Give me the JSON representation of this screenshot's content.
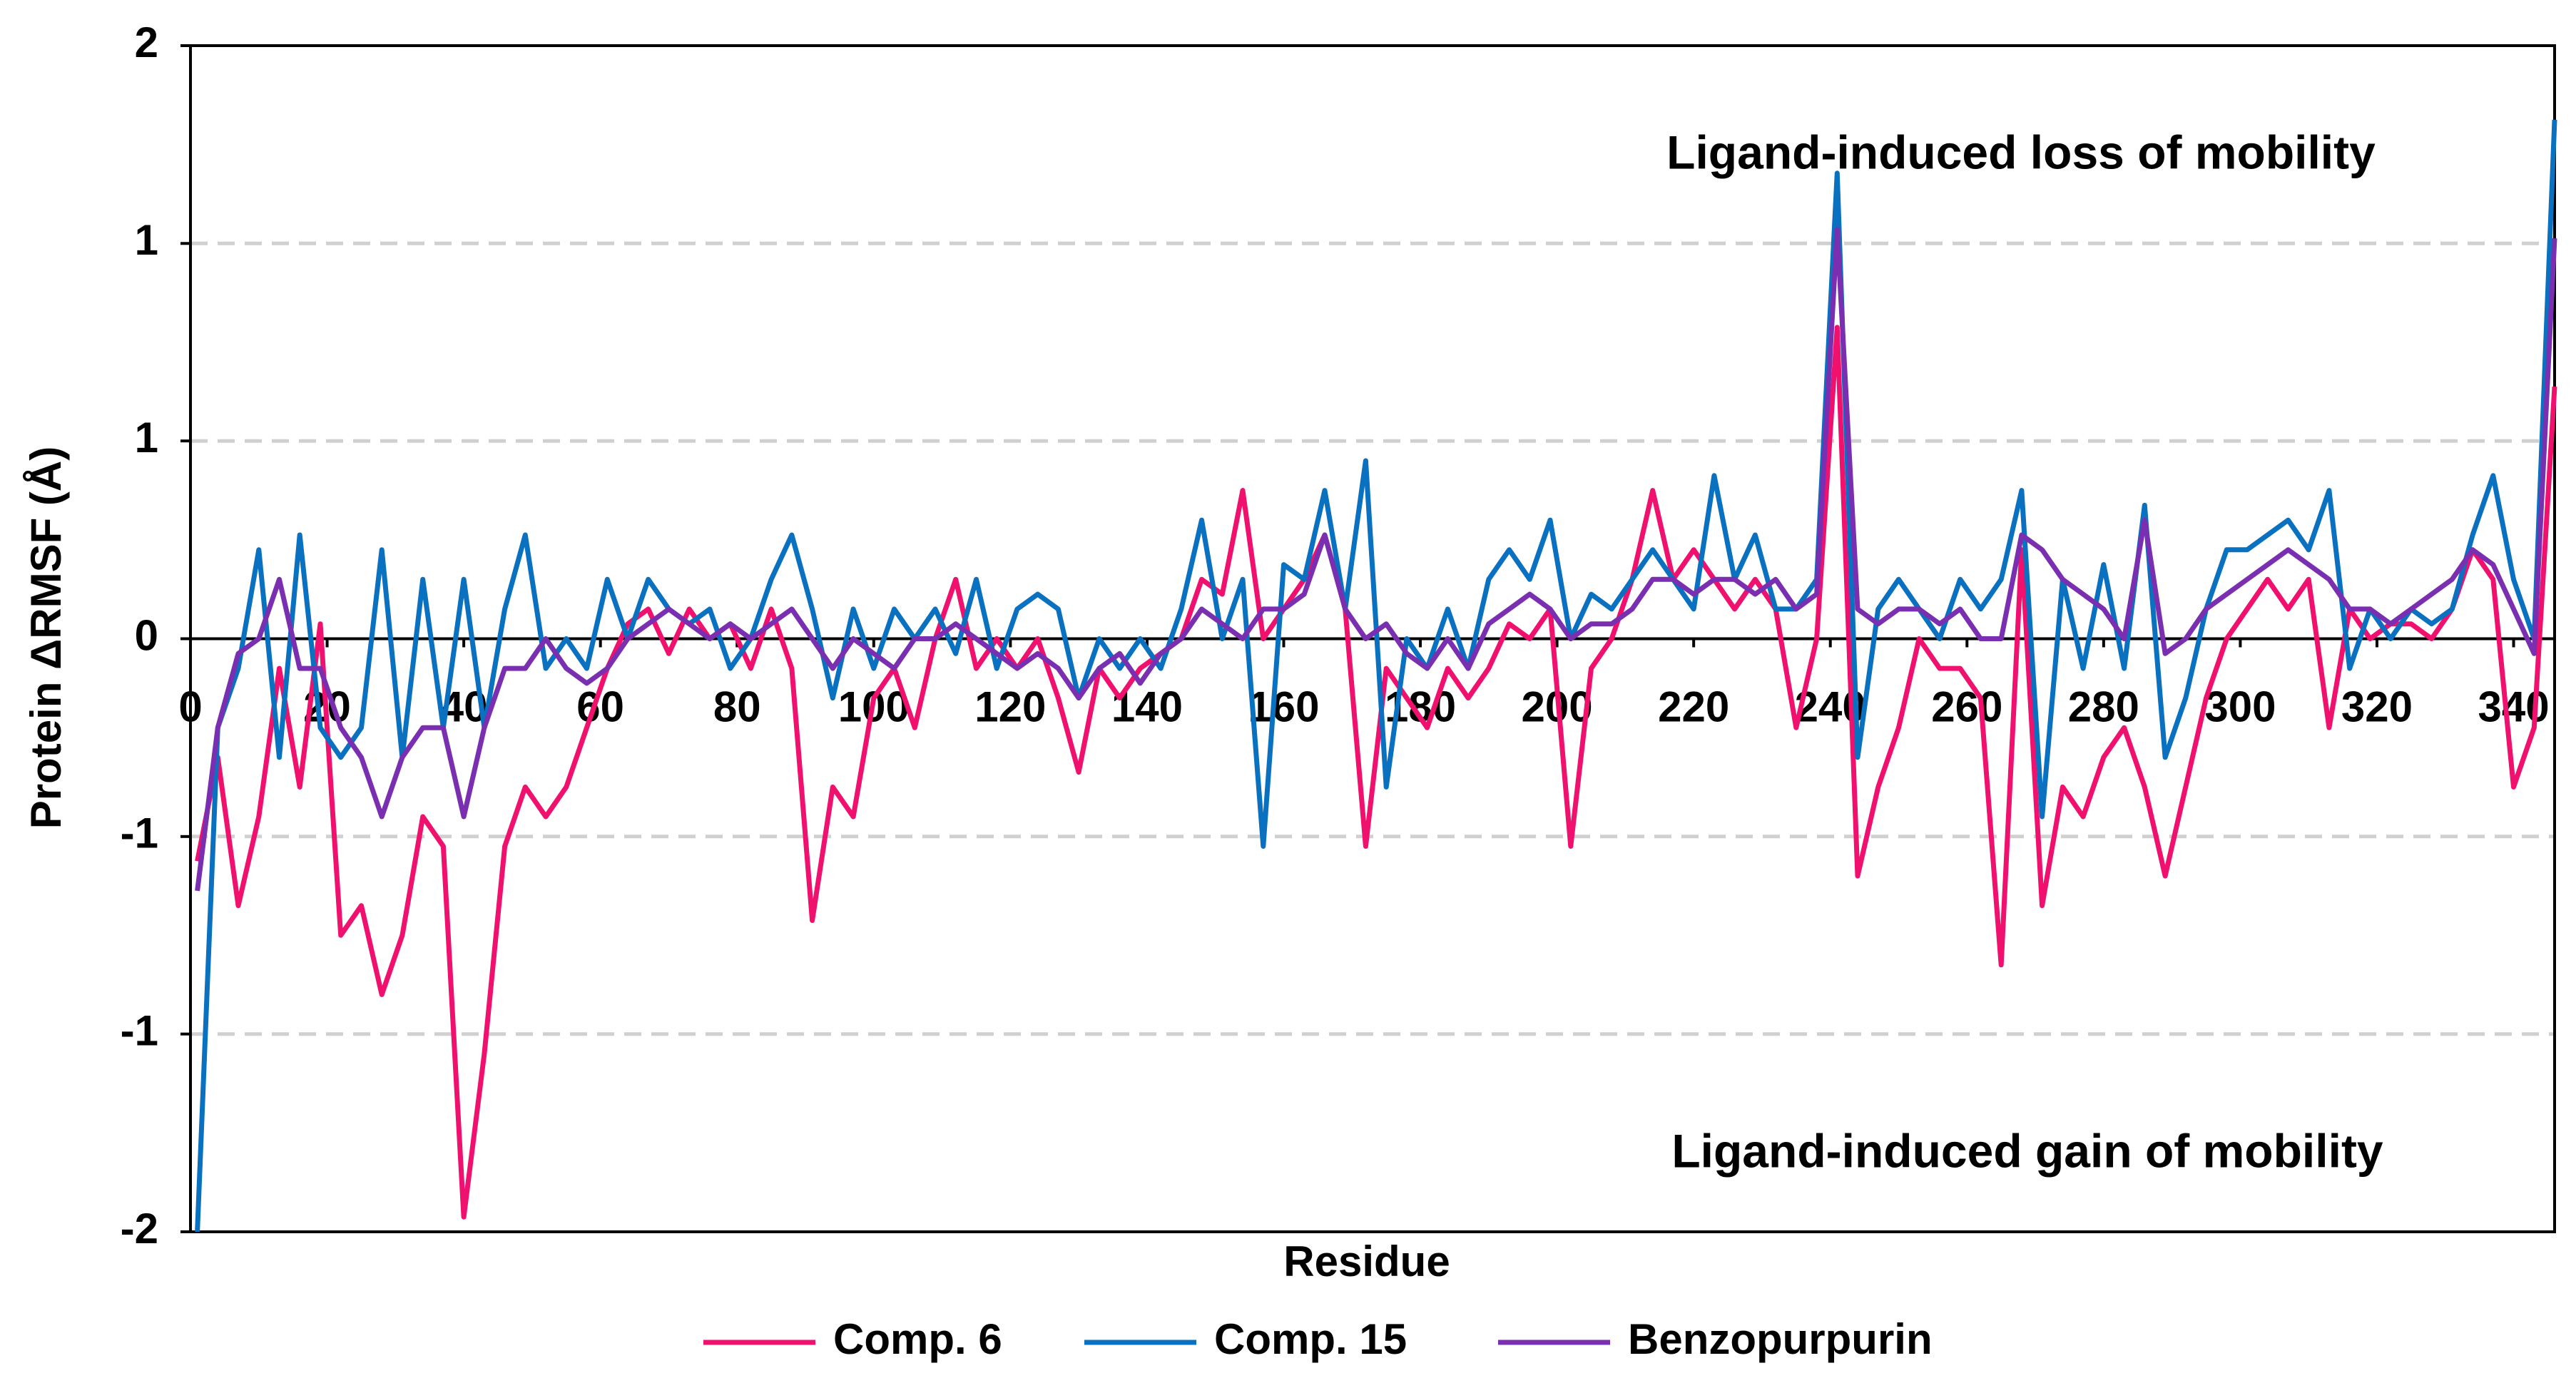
{
  "chart_data": {
    "type": "line",
    "y_label": "Protein ΔRMSF (Å)",
    "x_label": "Residue",
    "annotations": [
      "Ligand-induced loss of mobility",
      "Ligand-induced gain of mobility"
    ],
    "x": [
      1,
      4,
      7,
      10,
      13,
      16,
      19,
      22,
      25,
      28,
      31,
      34,
      37,
      40,
      43,
      46,
      49,
      52,
      55,
      58,
      61,
      64,
      67,
      70,
      73,
      76,
      79,
      82,
      85,
      88,
      91,
      94,
      97,
      100,
      103,
      106,
      109,
      112,
      115,
      118,
      121,
      124,
      127,
      130,
      133,
      136,
      139,
      142,
      145,
      148,
      151,
      154,
      157,
      160,
      163,
      166,
      169,
      172,
      175,
      178,
      181,
      184,
      187,
      190,
      193,
      196,
      199,
      202,
      205,
      208,
      211,
      214,
      217,
      220,
      223,
      226,
      229,
      232,
      235,
      238,
      241,
      244,
      247,
      250,
      253,
      256,
      259,
      262,
      265,
      268,
      271,
      274,
      277,
      280,
      283,
      286,
      289,
      292,
      295,
      298,
      301,
      304,
      307,
      310,
      313,
      316,
      319,
      322,
      325,
      328,
      331,
      334,
      337,
      340,
      343,
      346
    ],
    "series": [
      {
        "name": "Comp. 6",
        "color": "#f0106e",
        "values": [
          -0.75,
          -0.4,
          -0.9,
          -0.6,
          -0.1,
          -0.5,
          0.05,
          -1.0,
          -0.9,
          -1.2,
          -1.0,
          -0.6,
          -0.7,
          -1.95,
          -1.4,
          -0.7,
          -0.5,
          -0.6,
          -0.5,
          -0.3,
          -0.1,
          0.05,
          0.1,
          -0.05,
          0.1,
          0.0,
          0.05,
          -0.1,
          0.1,
          -0.1,
          -0.95,
          -0.5,
          -0.6,
          -0.2,
          -0.1,
          -0.3,
          0.0,
          0.2,
          -0.1,
          0.0,
          -0.1,
          0.0,
          -0.2,
          -0.45,
          -0.1,
          -0.2,
          -0.1,
          -0.05,
          0.0,
          0.2,
          0.15,
          0.5,
          0.0,
          0.1,
          0.2,
          0.35,
          0.1,
          -0.7,
          -0.1,
          -0.2,
          -0.3,
          -0.1,
          -0.2,
          -0.1,
          0.05,
          0.0,
          0.1,
          -0.7,
          -0.1,
          0.0,
          0.2,
          0.5,
          0.2,
          0.3,
          0.2,
          0.1,
          0.2,
          0.1,
          -0.3,
          0.0,
          1.05,
          -0.8,
          -0.5,
          -0.3,
          0.0,
          -0.1,
          -0.1,
          -0.2,
          -1.1,
          0.3,
          -0.9,
          -0.5,
          -0.6,
          -0.4,
          -0.3,
          -0.5,
          -0.8,
          -0.5,
          -0.2,
          0.0,
          0.1,
          0.2,
          0.1,
          0.2,
          -0.3,
          0.1,
          0.0,
          0.05,
          0.05,
          0.0,
          0.1,
          0.3,
          0.2,
          -0.5,
          -0.3,
          0.85
        ]
      },
      {
        "name": "Comp. 15",
        "color": "#0a70c0",
        "values": [
          -2.0,
          -0.3,
          -0.1,
          0.3,
          -0.4,
          0.35,
          -0.3,
          -0.4,
          -0.3,
          0.3,
          -0.4,
          0.2,
          -0.3,
          0.2,
          -0.3,
          0.1,
          0.35,
          -0.1,
          0.0,
          -0.1,
          0.2,
          0.0,
          0.2,
          0.1,
          0.05,
          0.1,
          -0.1,
          0.0,
          0.2,
          0.35,
          0.1,
          -0.2,
          0.1,
          -0.1,
          0.1,
          0.0,
          0.1,
          -0.05,
          0.2,
          -0.1,
          0.1,
          0.15,
          0.1,
          -0.2,
          0.0,
          -0.1,
          0.0,
          -0.1,
          0.1,
          0.4,
          0.0,
          0.2,
          -0.7,
          0.25,
          0.2,
          0.5,
          0.1,
          0.6,
          -0.5,
          0.0,
          -0.1,
          0.1,
          -0.1,
          0.2,
          0.3,
          0.2,
          0.4,
          0.0,
          0.15,
          0.1,
          0.2,
          0.3,
          0.2,
          0.1,
          0.55,
          0.2,
          0.35,
          0.1,
          0.1,
          0.2,
          1.57,
          -0.4,
          0.1,
          0.2,
          0.1,
          0.0,
          0.2,
          0.1,
          0.2,
          0.5,
          -0.6,
          0.2,
          -0.1,
          0.25,
          -0.1,
          0.45,
          -0.4,
          -0.2,
          0.1,
          0.3,
          0.3,
          0.35,
          0.4,
          0.3,
          0.5,
          -0.1,
          0.1,
          0.0,
          0.1,
          0.05,
          0.1,
          0.35,
          0.55,
          0.2,
          0.0,
          1.75
        ]
      },
      {
        "name": "Benzopurpurin",
        "color": "#7a2fb0",
        "values": [
          -0.85,
          -0.3,
          -0.05,
          0.0,
          0.2,
          -0.1,
          -0.1,
          -0.3,
          -0.4,
          -0.6,
          -0.4,
          -0.3,
          -0.3,
          -0.6,
          -0.3,
          -0.1,
          -0.1,
          0.0,
          -0.1,
          -0.15,
          -0.1,
          0.0,
          0.05,
          0.1,
          0.05,
          0.0,
          0.05,
          0.0,
          0.05,
          0.1,
          0.0,
          -0.1,
          0.0,
          -0.05,
          -0.1,
          0.0,
          0.0,
          0.05,
          0.0,
          -0.05,
          -0.1,
          -0.05,
          -0.1,
          -0.2,
          -0.1,
          -0.05,
          -0.15,
          -0.05,
          0.0,
          0.1,
          0.05,
          0.0,
          0.1,
          0.1,
          0.15,
          0.35,
          0.1,
          0.0,
          0.05,
          -0.05,
          -0.1,
          0.0,
          -0.1,
          0.05,
          0.1,
          0.15,
          0.1,
          0.0,
          0.05,
          0.05,
          0.1,
          0.2,
          0.2,
          0.15,
          0.2,
          0.2,
          0.15,
          0.2,
          0.1,
          0.15,
          1.38,
          0.1,
          0.05,
          0.1,
          0.1,
          0.05,
          0.1,
          0.0,
          0.0,
          0.35,
          0.3,
          0.2,
          0.15,
          0.1,
          0.0,
          0.4,
          -0.05,
          0.0,
          0.1,
          0.15,
          0.2,
          0.25,
          0.3,
          0.25,
          0.2,
          0.1,
          0.1,
          0.05,
          0.1,
          0.15,
          0.2,
          0.3,
          0.25,
          0.1,
          -0.05,
          1.35
        ]
      }
    ],
    "xlim": [
      0,
      346
    ],
    "xticks": [
      0,
      20,
      40,
      60,
      80,
      100,
      120,
      140,
      160,
      180,
      200,
      220,
      240,
      260,
      280,
      300,
      320,
      340
    ],
    "ylim": [
      -2,
      2
    ],
    "yticks": [
      -2,
      {
        "value": -1.333,
        "label": "-1"
      },
      {
        "value": -0.667,
        "label": "-1"
      },
      0,
      {
        "value": 0.667,
        "label": "1"
      },
      {
        "value": 1.333,
        "label": "1"
      },
      2
    ],
    "grid": true,
    "legend": "bottom"
  }
}
